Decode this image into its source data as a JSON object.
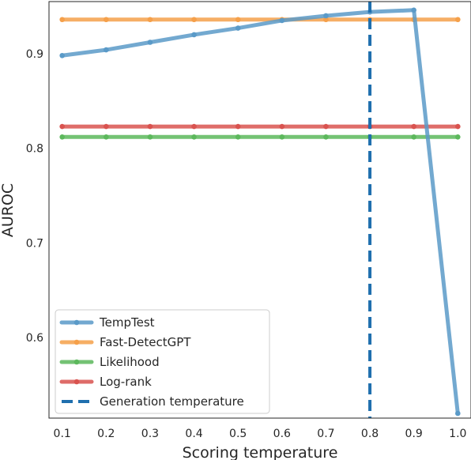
{
  "chart_data": {
    "type": "line",
    "title": "",
    "xlabel": "Scoring temperature",
    "ylabel": "AUROC",
    "x": [
      0.1,
      0.2,
      0.3,
      0.4,
      0.5,
      0.6,
      0.7,
      0.8,
      0.9,
      1.0
    ],
    "xticks": [
      "0.1",
      "0.2",
      "0.3",
      "0.4",
      "0.5",
      "0.6",
      "0.7",
      "0.8",
      "0.9",
      "1.0"
    ],
    "yticks": [
      "0.6",
      "0.7",
      "0.8",
      "0.9"
    ],
    "ytick_values": [
      0.6,
      0.7,
      0.8,
      0.9
    ],
    "xlim": [
      0.07,
      1.03
    ],
    "ylim": [
      0.515,
      0.955
    ],
    "grid": false,
    "legend_position": "bottom-left",
    "series": [
      {
        "name": "TempTest",
        "color": "#5a9ac8",
        "values": [
          0.898,
          0.904,
          0.912,
          0.92,
          0.927,
          0.935,
          0.94,
          0.944,
          0.946,
          0.52
        ]
      },
      {
        "name": "Fast-DetectGPT",
        "color": "#f5a04a",
        "values": [
          0.936,
          0.936,
          0.936,
          0.936,
          0.936,
          0.936,
          0.936,
          0.936,
          0.936,
          0.936
        ]
      },
      {
        "name": "Likelihood",
        "color": "#5cb85c",
        "values": [
          0.812,
          0.812,
          0.812,
          0.812,
          0.812,
          0.812,
          0.812,
          0.812,
          0.812,
          0.812
        ]
      },
      {
        "name": "Log-rank",
        "color": "#d9534f",
        "values": [
          0.823,
          0.823,
          0.823,
          0.823,
          0.823,
          0.823,
          0.823,
          0.823,
          0.823,
          0.823
        ]
      }
    ],
    "vline": {
      "name": "Generation temperature",
      "x": 0.8,
      "color": "#1f6fae",
      "style": "dashed"
    }
  }
}
